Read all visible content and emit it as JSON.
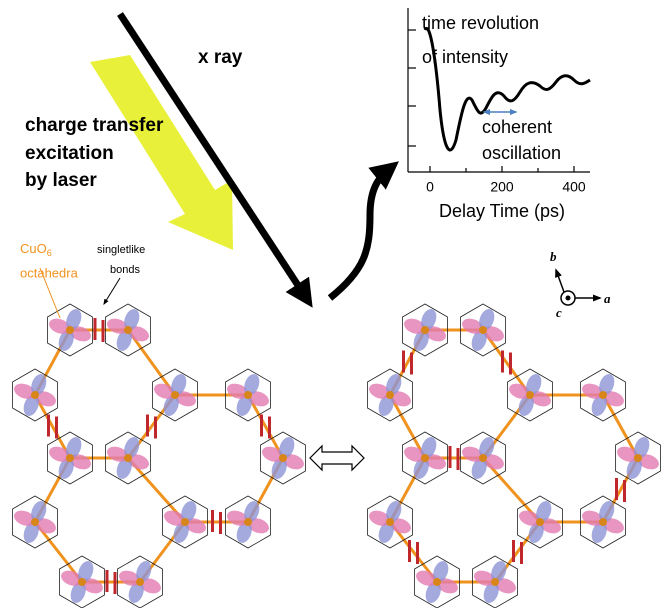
{
  "labels": {
    "xray": "x ray",
    "laser": [
      "charge transfer",
      "excitation",
      "by laser"
    ],
    "material": {
      "formula": "CuO",
      "subscript": "6",
      "word": "octahedra"
    },
    "bonds": [
      "singletlike",
      "bonds"
    ]
  },
  "inset": {
    "title": [
      "time revolution",
      "of intensity"
    ],
    "annotation": [
      "coherent",
      "oscillation"
    ],
    "x_label": "Delay Time (ps)",
    "x_ticks": [
      "0",
      "200",
      "400"
    ]
  },
  "axes": {
    "b": "b",
    "a": "a",
    "c": "c"
  }
}
